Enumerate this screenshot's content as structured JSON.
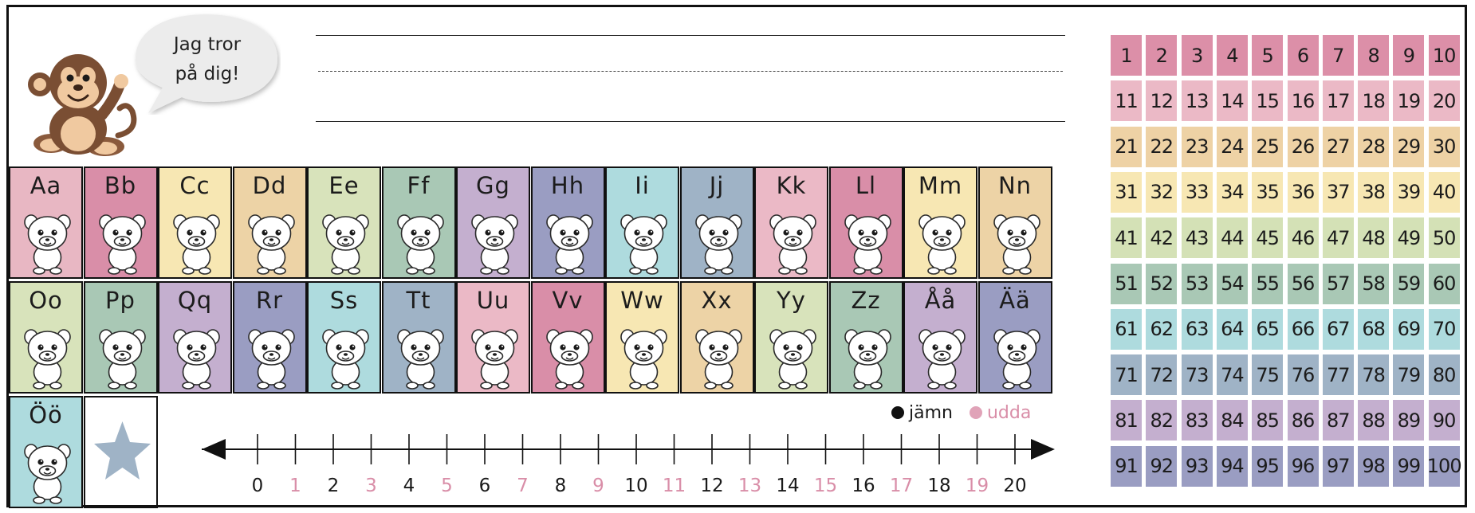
{
  "header": {
    "speech_line1": "Jag tror",
    "speech_line2": "på dig!"
  },
  "alphabet": [
    {
      "letter": "Aa",
      "animal": "monkey-icon",
      "color": "#e8b7c3"
    },
    {
      "letter": "Bb",
      "animal": "octopus-icon",
      "color": "#d98ea8"
    },
    {
      "letter": "Cc",
      "animal": "clownfish-icon",
      "color": "#f7e7b3"
    },
    {
      "letter": "Dd",
      "animal": "dolphin-icon",
      "color": "#edd3a6"
    },
    {
      "letter": "Ee",
      "animal": "squirrel-icon",
      "color": "#d8e3bb"
    },
    {
      "letter": "Ff",
      "animal": "cow-icon",
      "color": "#a9c8b5"
    },
    {
      "letter": "Gg",
      "animal": "giraffe-icon",
      "color": "#c4afcf"
    },
    {
      "letter": "Hh",
      "animal": "hippo-icon",
      "color": "#9a9dc2"
    },
    {
      "letter": "Ii",
      "animal": "lion-icon",
      "color": "#aedbde"
    },
    {
      "letter": "Jj",
      "animal": "leopard-icon",
      "color": "#9fb3c6"
    },
    {
      "letter": "Kk",
      "animal": "bunny-icon",
      "color": "#ebb9c6"
    },
    {
      "letter": "Ll",
      "animal": "lion-icon",
      "color": "#d98ea8"
    },
    {
      "letter": "Mm",
      "animal": "mouse-icon",
      "color": "#f7e7b3"
    },
    {
      "letter": "Nn",
      "animal": "rhino-icon",
      "color": "#edd3a6"
    },
    {
      "letter": "Oo",
      "animal": "snake-icon",
      "color": "#d8e3bb"
    },
    {
      "letter": "Pp",
      "animal": "penguin-icon",
      "color": "#a9c8b5"
    },
    {
      "letter": "Qq",
      "animal": "quail-icon",
      "color": "#c4afcf"
    },
    {
      "letter": "Rr",
      "animal": "fox-icon",
      "color": "#9a9dc2"
    },
    {
      "letter": "Ss",
      "animal": "sloth-icon",
      "color": "#aedbde"
    },
    {
      "letter": "Tt",
      "animal": "tiger-icon",
      "color": "#9fb3c6"
    },
    {
      "letter": "Uu",
      "animal": "owl-icon",
      "color": "#ebb9c6"
    },
    {
      "letter": "Vv",
      "animal": "wolf-icon",
      "color": "#d98ea8"
    },
    {
      "letter": "Ww",
      "animal": "walrus-icon",
      "color": "#f7e7b3"
    },
    {
      "letter": "Xx",
      "animal": "raccoon-icon",
      "color": "#edd3a6"
    },
    {
      "letter": "Yy",
      "animal": "yak-icon",
      "color": "#d8e3bb"
    },
    {
      "letter": "Zz",
      "animal": "zebra-icon",
      "color": "#a9c8b5"
    },
    {
      "letter": "Åå",
      "animal": "donkey-icon",
      "color": "#c4afcf"
    },
    {
      "letter": "Ää",
      "animal": "moose-icon",
      "color": "#9a9dc2"
    },
    {
      "letter": "Öö",
      "animal": "chameleon-icon",
      "color": "#aedbde"
    }
  ],
  "star": {
    "icon": "star-icon",
    "color": "#9fb3c6"
  },
  "legend": {
    "even_label": "jämn",
    "odd_label": "udda",
    "even_color": "#111111",
    "odd_color": "#d98ea8"
  },
  "number_line": {
    "numbers": [
      "0",
      "1",
      "2",
      "3",
      "4",
      "5",
      "6",
      "7",
      "8",
      "9",
      "10",
      "11",
      "12",
      "13",
      "14",
      "15",
      "16",
      "17",
      "18",
      "19",
      "20"
    ],
    "even_color": "#1a1a1a",
    "odd_color": "#d98ea8"
  },
  "hundred_chart": {
    "row_colors": [
      "#dc8fa8",
      "#ebb9c6",
      "#eed2a5",
      "#f7e7b3",
      "#d4e1b6",
      "#a9c8b5",
      "#aedbde",
      "#9fb3c6",
      "#c4afcf",
      "#9a9dc2"
    ],
    "numbers": [
      "1",
      "2",
      "3",
      "4",
      "5",
      "6",
      "7",
      "8",
      "9",
      "10",
      "11",
      "12",
      "13",
      "14",
      "15",
      "16",
      "17",
      "18",
      "19",
      "20",
      "21",
      "22",
      "23",
      "24",
      "25",
      "26",
      "27",
      "28",
      "29",
      "30",
      "31",
      "32",
      "33",
      "34",
      "35",
      "36",
      "37",
      "38",
      "39",
      "40",
      "41",
      "42",
      "43",
      "44",
      "45",
      "46",
      "47",
      "48",
      "49",
      "50",
      "51",
      "52",
      "53",
      "54",
      "55",
      "56",
      "57",
      "58",
      "59",
      "60",
      "61",
      "62",
      "63",
      "64",
      "65",
      "66",
      "67",
      "68",
      "69",
      "70",
      "71",
      "72",
      "73",
      "74",
      "75",
      "76",
      "77",
      "78",
      "79",
      "80",
      "81",
      "82",
      "83",
      "84",
      "85",
      "86",
      "87",
      "88",
      "89",
      "90",
      "91",
      "92",
      "93",
      "94",
      "95",
      "96",
      "97",
      "98",
      "99",
      "100"
    ]
  }
}
